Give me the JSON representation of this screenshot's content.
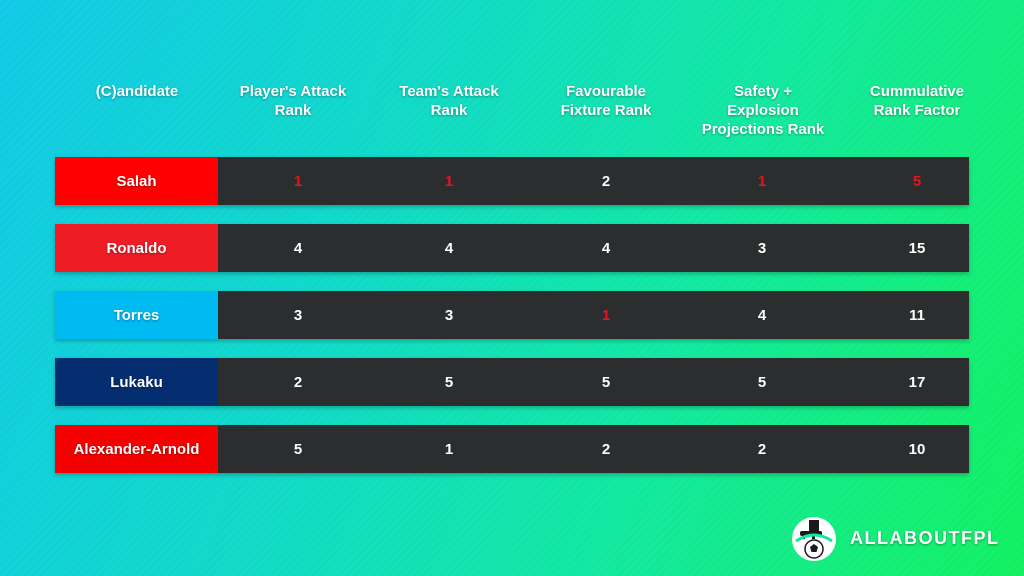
{
  "headers": {
    "candidate": "(C)andidate",
    "player_attack": "Player's Attack\nRank",
    "team_attack": "Team's Attack\nRank",
    "fixture": "Favourable\nFixture Rank",
    "safety": "Safety +\nExplosion\nProjections Rank",
    "cumulative": "Cummulative\nRank Factor"
  },
  "rows": [
    {
      "name": "Salah",
      "name_color": "#fe0000",
      "values": [
        "1",
        "1",
        "2",
        "1",
        "5"
      ],
      "highlight": [
        true,
        true,
        false,
        true,
        true
      ]
    },
    {
      "name": "Ronaldo",
      "name_color": "#ee1c25",
      "values": [
        "4",
        "4",
        "4",
        "3",
        "15"
      ],
      "highlight": [
        false,
        false,
        false,
        false,
        false
      ]
    },
    {
      "name": "Torres",
      "name_color": "#00baf2",
      "values": [
        "3",
        "3",
        "1",
        "4",
        "11"
      ],
      "highlight": [
        false,
        false,
        true,
        false,
        false
      ]
    },
    {
      "name": "Lukaku",
      "name_color": "#042e6f",
      "values": [
        "2",
        "5",
        "5",
        "5",
        "17"
      ],
      "highlight": [
        false,
        false,
        false,
        false,
        false
      ]
    },
    {
      "name": "Alexander-Arnold",
      "name_color": "#f40000",
      "values": [
        "5",
        "1",
        "2",
        "2",
        "10"
      ],
      "highlight": [
        false,
        false,
        false,
        false,
        false
      ]
    }
  ],
  "colors": {
    "row_bg": "#2b2d2e",
    "highlight": "#e8141c"
  },
  "brand": {
    "name": "ALLABOUTFPL",
    "logo_icon": "football-boot-logo-icon"
  }
}
